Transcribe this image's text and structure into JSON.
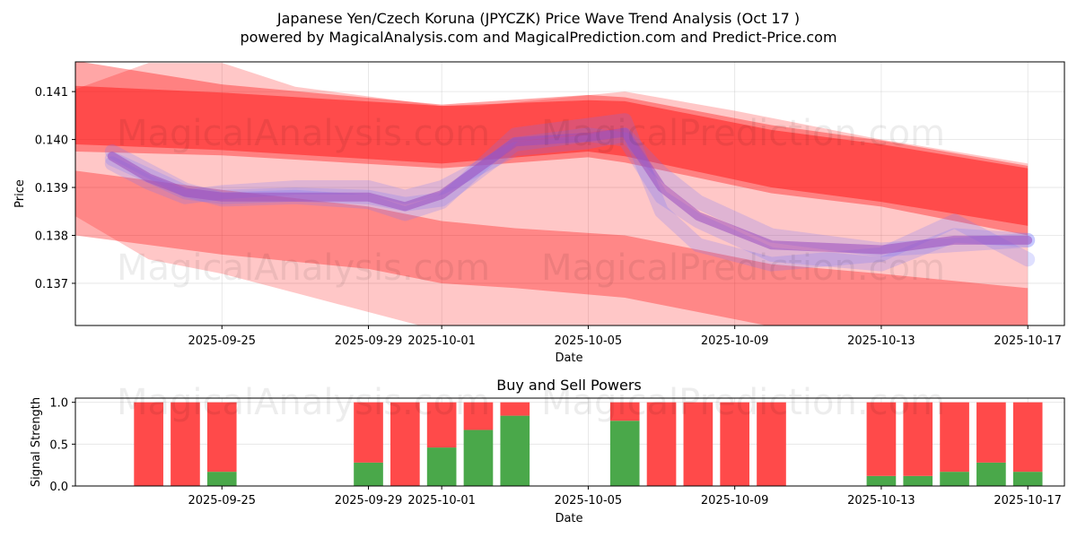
{
  "title": "Japanese Yen/Czech Koruna (JPYCZK) Price Wave Trend Analysis (Oct 17 )",
  "subtitle": "powered by MagicalAnalysis.com and MagicalPrediction.com and Predict-Price.com",
  "watermarks": [
    "MagicalAnalysis.com",
    "MagicalPrediction.com"
  ],
  "colors": {
    "red_band": "#ff0000",
    "light_red_band": "#ff6666",
    "blue_band": "#6f74ff",
    "purple_line": "#9b4fc0",
    "buy": "#4aa84a",
    "sell": "#ff4a4a"
  },
  "chart_data": [
    {
      "type": "line",
      "name": "price-wave-chart",
      "xlabel": "Date",
      "ylabel": "Price",
      "grid": true,
      "xlim": [
        "2025-09-21",
        "2025-10-18"
      ],
      "ylim": [
        0.13612,
        0.14162
      ],
      "x_ticks": [
        "2025-09-25",
        "2025-09-29",
        "2025-10-01",
        "2025-10-05",
        "2025-10-09",
        "2025-10-13",
        "2025-10-17"
      ],
      "y_ticks": [
        0.137,
        0.138,
        0.139,
        0.14,
        0.141
      ],
      "y_tick_labels": [
        "0.137",
        "0.138",
        "0.139",
        "0.140",
        "0.141"
      ],
      "bands": [
        {
          "name": "upper-red-wave-band",
          "x": [
            "2025-09-21",
            "2025-09-25",
            "2025-10-01",
            "2025-10-05",
            "2025-10-06",
            "2025-10-10",
            "2025-10-13",
            "2025-10-17"
          ],
          "upper": [
            0.14164,
            0.14115,
            0.14073,
            0.14093,
            0.14088,
            0.1403,
            0.13998,
            0.13945
          ],
          "lower": [
            0.13975,
            0.13967,
            0.1394,
            0.13963,
            0.13952,
            0.13888,
            0.1386,
            0.138
          ],
          "opacity": 0.35
        },
        {
          "name": "main-red-wave-band",
          "x": [
            "2025-09-21",
            "2025-09-25",
            "2025-10-01",
            "2025-10-05",
            "2025-10-06",
            "2025-10-10",
            "2025-10-13",
            "2025-10-17"
          ],
          "upper": [
            0.14112,
            0.14098,
            0.1407,
            0.14082,
            0.1408,
            0.1402,
            0.1399,
            0.1394
          ],
          "lower": [
            0.1399,
            0.13978,
            0.1395,
            0.13975,
            0.13965,
            0.139,
            0.1387,
            0.1382
          ],
          "opacity": 0.42
        },
        {
          "name": "descending-red-wave-band",
          "x": [
            "2025-09-21",
            "2025-09-23",
            "2025-09-25",
            "2025-09-27",
            "2025-10-01",
            "2025-10-02",
            "2025-10-06",
            "2025-10-09",
            "2025-10-13",
            "2025-10-17"
          ],
          "upper": [
            0.14105,
            0.1416,
            0.1416,
            0.1411,
            0.1407,
            0.1407,
            0.141,
            0.1406,
            0.14,
            0.1395
          ],
          "lower": [
            0.1384,
            0.1375,
            0.1372,
            0.1368,
            0.136,
            0.1359,
            0.1355,
            0.135,
            0.1346,
            0.1344
          ],
          "opacity": 0.22
        },
        {
          "name": "lower-red-wave-band",
          "x": [
            "2025-09-21",
            "2025-09-25",
            "2025-09-29",
            "2025-10-01",
            "2025-10-03",
            "2025-10-06",
            "2025-10-08",
            "2025-10-10",
            "2025-10-13",
            "2025-10-17"
          ],
          "upper": [
            0.13935,
            0.13895,
            0.1386,
            0.1383,
            0.13815,
            0.138,
            0.1377,
            0.1374,
            0.1372,
            0.1369
          ],
          "lower": [
            0.138,
            0.1376,
            0.1373,
            0.137,
            0.1369,
            0.1367,
            0.1364,
            0.1361,
            0.1359,
            0.1356
          ],
          "opacity": 0.32
        }
      ],
      "lines": [
        {
          "name": "blue-wave-1",
          "x": [
            "2025-09-22",
            "2025-09-23",
            "2025-09-24",
            "2025-09-25",
            "2025-09-27",
            "2025-09-29",
            "2025-09-30",
            "2025-10-01",
            "2025-10-03",
            "2025-10-05",
            "2025-10-06",
            "2025-10-07",
            "2025-10-08",
            "2025-10-10",
            "2025-10-13",
            "2025-10-15",
            "2025-10-17"
          ],
          "y": [
            0.1396,
            0.13925,
            0.1389,
            0.1388,
            0.13885,
            0.1388,
            0.13865,
            0.13875,
            0.1399,
            0.1401,
            0.14,
            0.1388,
            0.1383,
            0.1376,
            0.1374,
            0.138,
            0.1379
          ],
          "color": "blue"
        },
        {
          "name": "blue-wave-2",
          "x": [
            "2025-09-22",
            "2025-09-23",
            "2025-09-24",
            "2025-09-25",
            "2025-09-27",
            "2025-09-29",
            "2025-09-30",
            "2025-10-01",
            "2025-10-03",
            "2025-10-05",
            "2025-10-06",
            "2025-10-07",
            "2025-10-08",
            "2025-10-10",
            "2025-10-13",
            "2025-10-15",
            "2025-10-17"
          ],
          "y": [
            0.1395,
            0.1391,
            0.1388,
            0.1389,
            0.139,
            0.139,
            0.1388,
            0.139,
            0.1398,
            0.13995,
            0.1401,
            0.1393,
            0.1387,
            0.138,
            0.1377,
            0.1378,
            0.1379
          ],
          "color": "blue"
        },
        {
          "name": "blue-wave-3",
          "x": [
            "2025-09-22",
            "2025-09-23",
            "2025-09-24",
            "2025-09-25",
            "2025-09-27",
            "2025-09-29",
            "2025-09-30",
            "2025-10-01",
            "2025-10-03",
            "2025-10-05",
            "2025-10-06",
            "2025-10-07",
            "2025-10-08",
            "2025-10-10",
            "2025-10-13",
            "2025-10-15",
            "2025-10-17"
          ],
          "y": [
            0.13975,
            0.13935,
            0.13895,
            0.13875,
            0.1388,
            0.1387,
            0.13845,
            0.1387,
            0.1401,
            0.1403,
            0.1404,
            0.1385,
            0.1378,
            0.1374,
            0.1376,
            0.1383,
            0.1375
          ],
          "color": "blue"
        },
        {
          "name": "purple-wave",
          "x": [
            "2025-09-22",
            "2025-09-23",
            "2025-09-24",
            "2025-09-25",
            "2025-09-27",
            "2025-09-29",
            "2025-09-30",
            "2025-10-01",
            "2025-10-03",
            "2025-10-05",
            "2025-10-06",
            "2025-10-07",
            "2025-10-08",
            "2025-10-10",
            "2025-10-13",
            "2025-10-15",
            "2025-10-17"
          ],
          "y": [
            0.13965,
            0.1392,
            0.1389,
            0.1388,
            0.1388,
            0.1388,
            0.1386,
            0.13885,
            0.13995,
            0.14005,
            0.14015,
            0.139,
            0.1384,
            0.1378,
            0.1377,
            0.1379,
            0.1379
          ],
          "color": "purple"
        }
      ]
    },
    {
      "type": "bar",
      "name": "buy-sell-powers-chart",
      "title": "Buy and Sell Powers",
      "xlabel": "Date",
      "ylabel": "Signal Strength",
      "grid": true,
      "xlim": [
        "2025-09-21",
        "2025-10-18"
      ],
      "ylim": [
        0,
        1.05
      ],
      "x_ticks": [
        "2025-09-25",
        "2025-09-29",
        "2025-10-01",
        "2025-10-05",
        "2025-10-09",
        "2025-10-13",
        "2025-10-17"
      ],
      "y_ticks": [
        0.0,
        0.5,
        1.0
      ],
      "y_tick_labels": [
        "0.0",
        "0.5",
        "1.0"
      ],
      "categories": [
        "2025-09-23",
        "2025-09-24",
        "2025-09-25",
        "2025-09-29",
        "2025-09-30",
        "2025-10-01",
        "2025-10-02",
        "2025-10-03",
        "2025-10-06",
        "2025-10-07",
        "2025-10-08",
        "2025-10-09",
        "2025-10-10",
        "2025-10-13",
        "2025-10-14",
        "2025-10-15",
        "2025-10-16",
        "2025-10-17"
      ],
      "series": [
        {
          "name": "Buy",
          "values": [
            0.0,
            0.0,
            0.17,
            0.28,
            0.0,
            0.46,
            0.67,
            0.84,
            0.78,
            0.0,
            0.0,
            0.0,
            0.0,
            0.12,
            0.12,
            0.17,
            0.28,
            0.17
          ]
        },
        {
          "name": "Sell",
          "values": [
            1.0,
            1.0,
            0.83,
            0.72,
            1.0,
            0.54,
            0.33,
            0.16,
            0.22,
            1.0,
            1.0,
            1.0,
            1.0,
            0.88,
            0.88,
            0.83,
            0.72,
            0.83
          ]
        }
      ]
    }
  ]
}
